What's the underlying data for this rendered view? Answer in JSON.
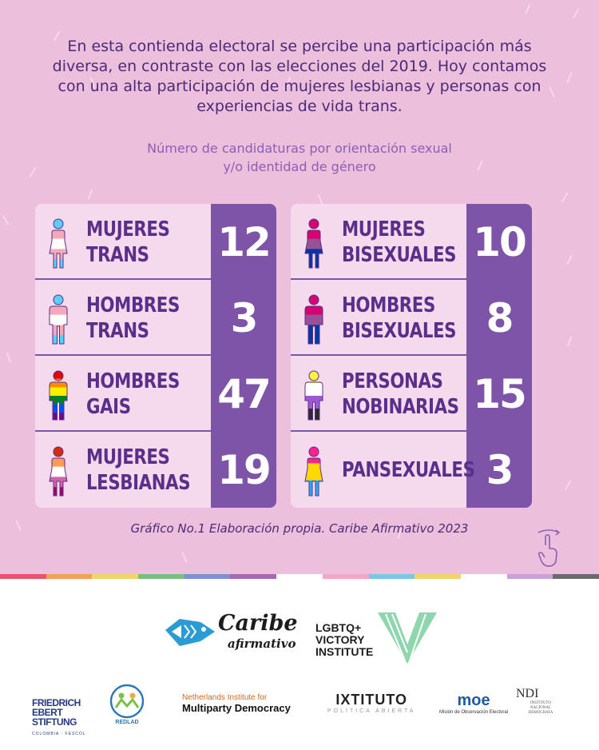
{
  "intro_text": "En esta contienda electoral se percibe una participación más diversa, en contraste con las elecciones del 2019. Hoy contamos con una alta participación de mujeres lesbianas y personas con experiencias de vida trans.",
  "chart_subtitle": "Número de candidaturas por orientación sexual\ny/o identidad de género",
  "chart_data": {
    "type": "table",
    "title": "Número de candidaturas por orientación sexual y/o identidad de género",
    "categories": [
      "MUJERES TRANS",
      "HOMBRES TRANS",
      "HOMBRES GAIS",
      "MUJERES LESBIANAS",
      "MUJERES BISEXUALES",
      "HOMBRES BISEXUALES",
      "PERSONAS NOBINARIAS",
      "PANSEXUALES"
    ],
    "values": [
      12,
      3,
      47,
      19,
      10,
      8,
      15,
      3
    ]
  },
  "left_rows": [
    {
      "label": "MUJERES\nTRANS",
      "value": "12",
      "icon": "trans-woman-icon",
      "colors": [
        "#5bcefa",
        "#f5a9b8",
        "#ffffff",
        "#f5a9b8",
        "#5bcefa"
      ],
      "gender": "woman"
    },
    {
      "label": "HOMBRES\nTRANS",
      "value": "3",
      "icon": "trans-man-icon",
      "colors": [
        "#5bcefa",
        "#f5a9b8",
        "#ffffff",
        "#f5a9b8",
        "#5bcefa"
      ],
      "gender": "man"
    },
    {
      "label": "HOMBRES\nGAIS",
      "value": "47",
      "icon": "gay-man-icon",
      "colors": [
        "#e40303",
        "#ff8c00",
        "#ffed00",
        "#008026",
        "#004dff",
        "#750787"
      ],
      "gender": "man"
    },
    {
      "label": "MUJERES\nLESBIANAS",
      "value": "19",
      "icon": "lesbian-woman-icon",
      "colors": [
        "#d52d00",
        "#ff9a56",
        "#ffffff",
        "#d362a4",
        "#a30262"
      ],
      "gender": "woman"
    }
  ],
  "right_rows": [
    {
      "label": "MUJERES\nBISEXUALES",
      "value": "10",
      "icon": "bisexual-woman-icon",
      "colors": [
        "#d60270",
        "#d60270",
        "#9b4f96",
        "#0038a8",
        "#0038a8"
      ],
      "gender": "woman"
    },
    {
      "label": "HOMBRES\nBISEXUALES",
      "value": "8",
      "icon": "bisexual-man-icon",
      "colors": [
        "#d60270",
        "#d60270",
        "#9b4f96",
        "#0038a8",
        "#0038a8"
      ],
      "gender": "man"
    },
    {
      "label": "PERSONAS\nNOBINARIAS",
      "value": "15",
      "icon": "nonbinary-person-icon",
      "colors": [
        "#fcf434",
        "#ffffff",
        "#9c59d1",
        "#2c2c2c"
      ],
      "gender": "man"
    },
    {
      "label": "PANSEXUALES",
      "value": "3",
      "icon": "pansexual-person-icon",
      "colors": [
        "#ff218c",
        "#ffd800",
        "#21b1ff"
      ],
      "gender": "woman"
    }
  ],
  "caption": "Gráfico No.1 Elaboración propia. Caribe Afirmativo 2023",
  "stripe_colors": [
    "#e8556a",
    "#f0a05a",
    "#f3d36b",
    "#79c07a",
    "#7f8fd6",
    "#a866b9",
    "#ffffff",
    "#f3a7c4",
    "#7dc4e8",
    "#f3d36b",
    "#ffffff",
    "#c9a0dc",
    "#6b6b6b"
  ],
  "logos": {
    "caribe_name": "Caribe",
    "caribe_sub": "afirmativo",
    "victory": "LGBTQ+\nVICTORY\nINSTITUTE",
    "fes": "FRIEDRICH\nEBERT\nSTIFTUNG",
    "fes_sub": "COLOMBIA · FESCOL",
    "redlad": "REDLAD",
    "nimd_top": "Netherlands Institute for",
    "nimd_bottom": "Multiparty Democracy",
    "ixt_top": "IXTITUTO",
    "ixt_bottom": "POLÍTICA ABIERTA",
    "moe_top": "moe",
    "moe_bottom": "Misión de Observación Electoral",
    "ndi_top": "NDI",
    "ndi_bottom": "INSTITUTO\nNACIONAL\nDEMÓCRATA"
  }
}
